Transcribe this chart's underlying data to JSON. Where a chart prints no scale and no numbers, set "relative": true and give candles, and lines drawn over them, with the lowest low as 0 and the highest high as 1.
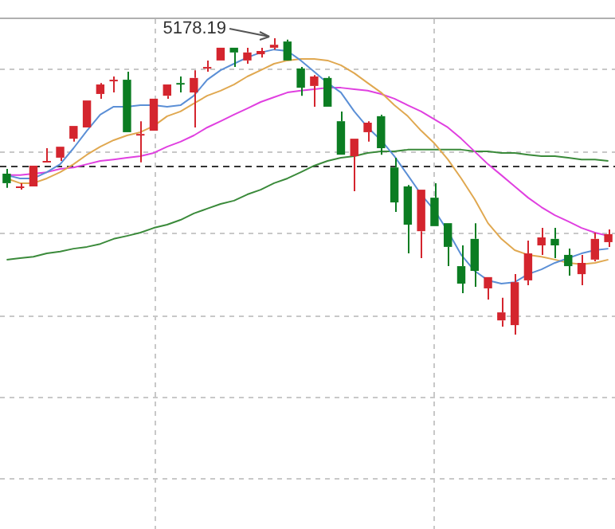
{
  "chart_data": {
    "type": "candlestick",
    "relative": true,
    "grid": true,
    "legend": false,
    "tick_labels": false,
    "categories": [
      null,
      null,
      null,
      null,
      null,
      null,
      null,
      null,
      null,
      null,
      null,
      null,
      null,
      null,
      null,
      null,
      null,
      null,
      null,
      null,
      null,
      null,
      null,
      null,
      null,
      null,
      null,
      null,
      null,
      null,
      null,
      null,
      null,
      null,
      null,
      null,
      null,
      null,
      null,
      null,
      null,
      null,
      null,
      null,
      null,
      null
    ],
    "ohlc": [
      [
        0.543,
        0.559,
        0.495,
        0.511
      ],
      [
        0.495,
        0.511,
        0.489,
        0.5
      ],
      [
        0.5,
        0.57,
        0.5,
        0.57
      ],
      [
        0.581,
        0.629,
        0.581,
        0.586
      ],
      [
        0.597,
        0.634,
        0.586,
        0.634
      ],
      [
        0.661,
        0.704,
        0.651,
        0.704
      ],
      [
        0.699,
        0.79,
        0.699,
        0.79
      ],
      [
        0.812,
        0.849,
        0.796,
        0.844
      ],
      [
        0.855,
        0.871,
        0.817,
        0.86
      ],
      [
        0.86,
        0.887,
        0.683,
        0.683
      ],
      [
        0.672,
        0.72,
        0.581,
        0.677
      ],
      [
        0.688,
        0.796,
        0.688,
        0.796
      ],
      [
        0.806,
        0.844,
        0.796,
        0.844
      ],
      [
        0.849,
        0.871,
        0.817,
        0.844
      ],
      [
        0.817,
        0.892,
        0.699,
        0.866
      ],
      [
        0.898,
        0.925,
        0.887,
        0.903
      ],
      [
        0.925,
        0.968,
        0.925,
        0.968
      ],
      [
        0.968,
        0.968,
        0.903,
        0.952
      ],
      [
        0.925,
        0.968,
        0.914,
        0.952
      ],
      [
        0.946,
        0.968,
        0.935,
        0.957
      ],
      [
        0.968,
        1,
        0.962,
        0.978
      ],
      [
        0.989,
        0.995,
        0.925,
        0.925
      ],
      [
        0.898,
        0.903,
        0.806,
        0.833
      ],
      [
        0.839,
        0.876,
        0.769,
        0.871
      ],
      [
        0.866,
        0.871,
        0.769,
        0.769
      ],
      [
        0.72,
        0.753,
        0.607,
        0.607
      ],
      [
        0.602,
        0.661,
        0.484,
        0.661
      ],
      [
        0.683,
        0.72,
        0.651,
        0.715
      ],
      [
        0.737,
        0.742,
        0.607,
        0.629
      ],
      [
        0.564,
        0.597,
        0.414,
        0.446
      ],
      [
        0.5,
        0.505,
        0.274,
        0.371
      ],
      [
        0.349,
        0.489,
        0.258,
        0.489
      ],
      [
        0.462,
        0.511,
        0.366,
        0.366
      ],
      [
        0.376,
        0.376,
        0.231,
        0.296
      ],
      [
        0.231,
        0.301,
        0.14,
        0.172
      ],
      [
        0.323,
        0.376,
        0.161,
        0.215
      ],
      [
        0.156,
        0.194,
        0.118,
        0.194
      ],
      [
        0.048,
        0.124,
        0.027,
        0.075
      ],
      [
        0.032,
        0.204,
        0,
        0.177
      ],
      [
        0.183,
        0.317,
        0.167,
        0.274
      ],
      [
        0.301,
        0.36,
        0.269,
        0.328
      ],
      [
        0.323,
        0.36,
        0.258,
        0.301
      ],
      [
        0.269,
        0.29,
        0.199,
        0.231
      ],
      [
        0.204,
        0.269,
        0.167,
        0.242
      ],
      [
        0.253,
        0.344,
        0.247,
        0.323
      ],
      [
        0.312,
        0.355,
        0.296,
        0.339
      ]
    ],
    "colors": [
      "#0b7d22",
      "#d4252e",
      "#d4252e",
      "#d4252e",
      "#d4252e",
      "#d4252e",
      "#d4252e",
      "#d4252e",
      "#d4252e",
      "#0b7d22",
      "#d4252e",
      "#d4252e",
      "#d4252e",
      "#0b7d22",
      "#d4252e",
      "#d4252e",
      "#d4252e",
      "#0b7d22",
      "#d4252e",
      "#d4252e",
      "#d4252e",
      "#0b7d22",
      "#0b7d22",
      "#d4252e",
      "#0b7d22",
      "#0b7d22",
      "#d4252e",
      "#d4252e",
      "#0b7d22",
      "#0b7d22",
      "#0b7d22",
      "#d4252e",
      "#0b7d22",
      "#0b7d22",
      "#0b7d22",
      "#0b7d22",
      "#d4252e",
      "#d4252e",
      "#d4252e",
      "#d4252e",
      "#d4252e",
      "#0b7d22",
      "#0b7d22",
      "#d4252e",
      "#d4252e",
      "#d4252e"
    ],
    "series": [
      {
        "type": "line",
        "color": "#5b8fd6",
        "values": [
          0.538,
          0.527,
          0.527,
          0.548,
          0.575,
          0.629,
          0.688,
          0.742,
          0.769,
          0.769,
          0.774,
          0.774,
          0.769,
          0.774,
          0.806,
          0.86,
          0.892,
          0.914,
          0.935,
          0.952,
          0.962,
          0.957,
          0.925,
          0.887,
          0.849,
          0.817,
          0.753,
          0.699,
          0.656,
          0.602,
          0.538,
          0.473,
          0.419,
          0.349,
          0.269,
          0.215,
          0.183,
          0.172,
          0.177,
          0.204,
          0.22,
          0.242,
          0.258,
          0.274,
          0.285,
          0.29
        ]
      },
      {
        "type": "line",
        "color": "#e0a850",
        "values": [
          0.527,
          0.511,
          0.511,
          0.527,
          0.548,
          0.575,
          0.607,
          0.634,
          0.656,
          0.672,
          0.683,
          0.704,
          0.737,
          0.753,
          0.78,
          0.806,
          0.823,
          0.844,
          0.871,
          0.892,
          0.914,
          0.925,
          0.93,
          0.93,
          0.925,
          0.909,
          0.882,
          0.849,
          0.817,
          0.774,
          0.737,
          0.688,
          0.645,
          0.591,
          0.527,
          0.457,
          0.376,
          0.323,
          0.285,
          0.269,
          0.263,
          0.253,
          0.242,
          0.237,
          0.242,
          0.253
        ]
      },
      {
        "type": "line",
        "color": "#e040e0",
        "values": [
          0.538,
          0.538,
          0.543,
          0.548,
          0.559,
          0.564,
          0.575,
          0.586,
          0.591,
          0.597,
          0.602,
          0.613,
          0.634,
          0.651,
          0.672,
          0.699,
          0.72,
          0.742,
          0.763,
          0.785,
          0.801,
          0.817,
          0.823,
          0.828,
          0.833,
          0.833,
          0.828,
          0.823,
          0.812,
          0.796,
          0.774,
          0.753,
          0.726,
          0.699,
          0.661,
          0.618,
          0.575,
          0.538,
          0.5,
          0.462,
          0.43,
          0.403,
          0.382,
          0.36,
          0.344,
          0.333
        ]
      },
      {
        "type": "line",
        "color": "#3a8a3a",
        "values": [
          0.253,
          0.258,
          0.263,
          0.274,
          0.28,
          0.29,
          0.296,
          0.306,
          0.323,
          0.333,
          0.344,
          0.36,
          0.371,
          0.387,
          0.409,
          0.425,
          0.441,
          0.452,
          0.473,
          0.489,
          0.511,
          0.527,
          0.548,
          0.57,
          0.586,
          0.597,
          0.602,
          0.613,
          0.618,
          0.618,
          0.624,
          0.624,
          0.624,
          0.624,
          0.624,
          0.618,
          0.618,
          0.613,
          0.613,
          0.607,
          0.602,
          0.602,
          0.597,
          0.591,
          0.591,
          0.586
        ]
      }
    ],
    "ref_lines": [
      {
        "axis": "y",
        "value": 0.57,
        "color": "#333333",
        "line_style": "dashed"
      }
    ],
    "annotations": [
      "5178.19"
    ]
  }
}
